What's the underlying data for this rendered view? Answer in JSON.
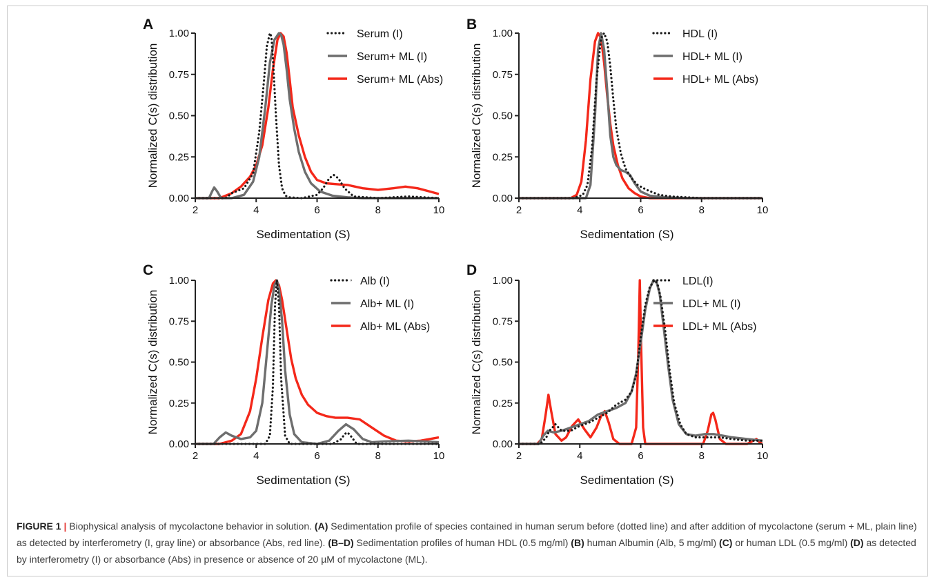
{
  "figure": {
    "caption": {
      "label": "FIGURE 1",
      "sep": "|",
      "parts": [
        {
          "t": " Biophysical analysis of mycolactone behavior in solution. ",
          "b": false
        },
        {
          "t": "(A)",
          "b": true
        },
        {
          "t": " Sedimentation profile of species contained in human serum before (dotted line) and after addition of mycolactone (serum + ML, plain line) as detected by interferometry (I, gray line) or absorbance (Abs, red line). ",
          "b": false
        },
        {
          "t": "(B–D)",
          "b": true
        },
        {
          "t": " Sedimentation profiles of human HDL (0.5 mg/ml) ",
          "b": false
        },
        {
          "t": "(B)",
          "b": true
        },
        {
          "t": " human Albumin (Alb, 5 mg/ml) ",
          "b": false
        },
        {
          "t": "(C)",
          "b": true
        },
        {
          "t": " or human LDL (0.5 mg/ml) ",
          "b": false
        },
        {
          "t": "(D)",
          "b": true
        },
        {
          "t": " as detected by interferometry (I) or absorbance (Abs) in presence or absence of 20 µM of mycolactone (ML).",
          "b": false
        }
      ]
    }
  },
  "colors": {
    "dotted": "#1a1a1a",
    "gray": "#6e6e6e",
    "red": "#f4281a",
    "axis": "#222222"
  },
  "chart_data": [
    {
      "panel": "A",
      "type": "line",
      "xlabel": "Sedimentation (S)",
      "ylabel": "Normalized C(s) distribution",
      "xlim": [
        2,
        10
      ],
      "ylim": [
        0,
        1
      ],
      "xticks": [
        2,
        4,
        6,
        8,
        10
      ],
      "yticks": [
        "0.00",
        "0.25",
        "0.50",
        "0.75",
        "1.00"
      ],
      "legend": "top-right",
      "series": [
        {
          "name": "Serum (I)",
          "style": "dotted",
          "x": [
            2.0,
            3.0,
            3.2,
            3.6,
            3.9,
            4.1,
            4.25,
            4.35,
            4.45,
            4.5,
            4.55,
            4.65,
            4.75,
            4.85,
            4.95,
            5.0,
            5.1,
            5.5,
            6.0,
            6.2,
            6.4,
            6.55,
            6.7,
            6.9,
            7.2,
            8.0,
            9.0,
            10.0
          ],
          "y": [
            0.0,
            0.0,
            0.03,
            0.06,
            0.15,
            0.4,
            0.7,
            0.92,
            1.0,
            0.98,
            0.85,
            0.5,
            0.2,
            0.06,
            0.02,
            0.01,
            0.005,
            0.0,
            0.02,
            0.06,
            0.12,
            0.14,
            0.12,
            0.06,
            0.01,
            0.0,
            0.01,
            0.0
          ]
        },
        {
          "name": "Serum+ ML (I)",
          "style": "solid",
          "x": [
            2.0,
            2.45,
            2.55,
            2.62,
            2.72,
            2.85,
            3.2,
            3.6,
            3.9,
            4.1,
            4.3,
            4.45,
            4.6,
            4.75,
            4.82,
            4.9,
            5.0,
            5.1,
            5.25,
            5.4,
            5.6,
            5.8,
            6.1,
            6.5,
            7.0,
            7.5,
            8.0,
            9.0,
            10.0
          ],
          "y": [
            0.0,
            0.0,
            0.04,
            0.065,
            0.04,
            0.0,
            0.0,
            0.02,
            0.1,
            0.25,
            0.55,
            0.82,
            0.96,
            1.0,
            0.99,
            0.93,
            0.78,
            0.6,
            0.42,
            0.28,
            0.16,
            0.09,
            0.04,
            0.015,
            0.005,
            0.0,
            0.0,
            0.0,
            0.0
          ]
        },
        {
          "name": "Serum+ ML (Abs)",
          "style": "solid",
          "x": [
            2.0,
            2.8,
            3.2,
            3.5,
            3.8,
            4.0,
            4.2,
            4.4,
            4.55,
            4.7,
            4.8,
            4.9,
            5.0,
            5.1,
            5.2,
            5.4,
            5.6,
            5.8,
            6.0,
            6.3,
            6.6,
            7.0,
            7.5,
            8.0,
            8.5,
            8.9,
            9.3,
            9.7,
            10.0
          ],
          "y": [
            0.0,
            0.0,
            0.03,
            0.07,
            0.13,
            0.2,
            0.32,
            0.55,
            0.78,
            0.96,
            1.0,
            0.98,
            0.88,
            0.72,
            0.55,
            0.38,
            0.25,
            0.16,
            0.11,
            0.09,
            0.085,
            0.08,
            0.06,
            0.05,
            0.06,
            0.07,
            0.06,
            0.04,
            0.025
          ]
        }
      ]
    },
    {
      "panel": "B",
      "type": "line",
      "xlabel": "Sedimentation (S)",
      "ylabel": "Normalized C(s) distribution",
      "xlim": [
        2,
        10
      ],
      "ylim": [
        0,
        1
      ],
      "xticks": [
        2,
        4,
        6,
        8,
        10
      ],
      "yticks": [
        "0.00",
        "0.25",
        "0.50",
        "0.75",
        "1.00"
      ],
      "legend": "top-right",
      "series": [
        {
          "name": "HDL (I)",
          "style": "dotted",
          "x": [
            2.0,
            3.8,
            4.1,
            4.25,
            4.4,
            4.55,
            4.7,
            4.8,
            4.9,
            5.0,
            5.1,
            5.2,
            5.35,
            5.5,
            5.7,
            5.9,
            6.2,
            6.6,
            7.0,
            7.5,
            8.0,
            9.0,
            10.0
          ],
          "y": [
            0.0,
            0.0,
            0.02,
            0.08,
            0.3,
            0.72,
            0.97,
            1.0,
            0.95,
            0.8,
            0.6,
            0.42,
            0.27,
            0.18,
            0.12,
            0.08,
            0.05,
            0.02,
            0.01,
            0.005,
            0.0,
            0.0,
            0.0
          ]
        },
        {
          "name": "HDL+ ML (I)",
          "style": "solid",
          "x": [
            2.0,
            4.2,
            4.35,
            4.5,
            4.6,
            4.7,
            4.8,
            4.9,
            5.0,
            5.1,
            5.2,
            5.35,
            5.5,
            5.65,
            5.8,
            6.0,
            6.3,
            6.8,
            7.5,
            8.0,
            9.0,
            10.0
          ],
          "y": [
            0.0,
            0.0,
            0.08,
            0.5,
            0.9,
            1.0,
            0.9,
            0.65,
            0.38,
            0.25,
            0.2,
            0.17,
            0.16,
            0.14,
            0.09,
            0.04,
            0.015,
            0.005,
            0.0,
            0.0,
            0.0,
            0.0
          ]
        },
        {
          "name": "HDL+ ML (Abs)",
          "style": "solid",
          "x": [
            2.0,
            3.7,
            3.9,
            4.05,
            4.2,
            4.35,
            4.5,
            4.6,
            4.7,
            4.8,
            4.9,
            5.0,
            5.1,
            5.25,
            5.4,
            5.6,
            5.8,
            6.0,
            6.3,
            7.0,
            8.0,
            10.0
          ],
          "y": [
            0.0,
            0.0,
            0.02,
            0.1,
            0.35,
            0.72,
            0.95,
            1.0,
            0.97,
            0.82,
            0.62,
            0.45,
            0.32,
            0.2,
            0.12,
            0.06,
            0.03,
            0.01,
            0.0,
            0.0,
            0.0,
            0.0
          ]
        }
      ]
    },
    {
      "panel": "C",
      "type": "line",
      "xlabel": "Sedimentation (S)",
      "ylabel": "Normalized C(s) distribution",
      "xlim": [
        2,
        10
      ],
      "ylim": [
        0,
        1
      ],
      "xticks": [
        2,
        4,
        6,
        8,
        10
      ],
      "yticks": [
        "0.00",
        "0.25",
        "0.50",
        "0.75",
        "1.00"
      ],
      "legend": "top-right",
      "series": [
        {
          "name": "Alb (I)",
          "style": "dotted",
          "x": [
            2.0,
            4.3,
            4.45,
            4.55,
            4.62,
            4.68,
            4.75,
            4.82,
            4.95,
            5.1,
            6.5,
            6.8,
            6.9,
            7.0,
            7.1,
            7.3,
            8.0,
            10.0
          ],
          "y": [
            0.0,
            0.0,
            0.05,
            0.35,
            0.85,
            1.0,
            0.85,
            0.4,
            0.05,
            0.0,
            0.0,
            0.03,
            0.06,
            0.07,
            0.05,
            0.0,
            0.0,
            0.0
          ]
        },
        {
          "name": "Alb+ ML (I)",
          "style": "solid",
          "x": [
            2.0,
            2.6,
            2.8,
            3.0,
            3.2,
            3.5,
            3.8,
            4.0,
            4.2,
            4.35,
            4.5,
            4.6,
            4.68,
            4.75,
            4.85,
            4.95,
            5.1,
            5.25,
            5.5,
            6.0,
            6.4,
            6.7,
            6.95,
            7.2,
            7.5,
            7.8,
            8.2,
            9.0,
            9.5,
            10.0
          ],
          "y": [
            0.0,
            0.0,
            0.04,
            0.07,
            0.05,
            0.03,
            0.04,
            0.08,
            0.25,
            0.55,
            0.85,
            0.97,
            1.0,
            0.95,
            0.75,
            0.45,
            0.18,
            0.06,
            0.01,
            0.0,
            0.02,
            0.08,
            0.12,
            0.09,
            0.03,
            0.01,
            0.015,
            0.02,
            0.015,
            0.01
          ]
        },
        {
          "name": "Alb+ ML (Abs)",
          "style": "solid",
          "x": [
            2.0,
            2.8,
            3.2,
            3.5,
            3.8,
            4.0,
            4.2,
            4.4,
            4.55,
            4.65,
            4.75,
            4.85,
            5.0,
            5.15,
            5.3,
            5.5,
            5.7,
            6.0,
            6.3,
            6.6,
            7.0,
            7.4,
            7.8,
            8.2,
            8.6,
            9.0,
            9.4,
            9.7,
            10.0
          ],
          "y": [
            0.0,
            0.0,
            0.02,
            0.06,
            0.2,
            0.4,
            0.65,
            0.88,
            0.98,
            1.0,
            0.97,
            0.88,
            0.7,
            0.52,
            0.4,
            0.3,
            0.24,
            0.19,
            0.17,
            0.16,
            0.16,
            0.15,
            0.1,
            0.05,
            0.02,
            0.015,
            0.02,
            0.03,
            0.04
          ]
        }
      ]
    },
    {
      "panel": "D",
      "type": "line",
      "xlabel": "Sedimentation (S)",
      "ylabel": "Normalized C(s) distribution",
      "xlim": [
        2,
        10
      ],
      "ylim": [
        0,
        1
      ],
      "xticks": [
        2,
        4,
        6,
        8,
        10
      ],
      "yticks": [
        "0.00",
        "0.25",
        "0.50",
        "0.75",
        "1.00"
      ],
      "legend": "top-right",
      "series": [
        {
          "name": "LDL(I)",
          "style": "dotted",
          "x": [
            2.0,
            2.7,
            2.9,
            3.0,
            3.2,
            3.4,
            3.7,
            4.0,
            4.3,
            4.6,
            4.9,
            5.2,
            5.5,
            5.7,
            5.85,
            6.0,
            6.15,
            6.3,
            6.45,
            6.55,
            6.65,
            6.8,
            6.95,
            7.1,
            7.3,
            7.5,
            7.8,
            8.2,
            8.6,
            9.0,
            9.5,
            10.0
          ],
          "y": [
            0.0,
            0.0,
            0.04,
            0.08,
            0.12,
            0.08,
            0.08,
            0.11,
            0.13,
            0.16,
            0.19,
            0.24,
            0.27,
            0.32,
            0.42,
            0.65,
            0.85,
            0.96,
            1.0,
            0.98,
            0.9,
            0.7,
            0.45,
            0.25,
            0.12,
            0.06,
            0.04,
            0.04,
            0.04,
            0.03,
            0.02,
            0.02
          ]
        },
        {
          "name": "LDL+ ML (I)",
          "style": "solid",
          "x": [
            2.0,
            2.65,
            2.8,
            2.95,
            3.15,
            3.4,
            3.7,
            4.0,
            4.3,
            4.6,
            4.9,
            5.2,
            5.5,
            5.7,
            5.85,
            6.0,
            6.15,
            6.3,
            6.42,
            6.52,
            6.62,
            6.75,
            6.9,
            7.05,
            7.25,
            7.5,
            7.8,
            8.1,
            8.4,
            8.7,
            9.0,
            9.5,
            10.0
          ],
          "y": [
            0.0,
            0.0,
            0.05,
            0.08,
            0.07,
            0.08,
            0.1,
            0.12,
            0.14,
            0.18,
            0.2,
            0.22,
            0.25,
            0.32,
            0.43,
            0.62,
            0.82,
            0.95,
            1.0,
            0.99,
            0.92,
            0.72,
            0.48,
            0.27,
            0.12,
            0.06,
            0.05,
            0.06,
            0.06,
            0.05,
            0.04,
            0.03,
            0.02
          ]
        },
        {
          "name": "LDL+ ML (Abs)",
          "style": "solid",
          "x": [
            2.0,
            2.6,
            2.75,
            2.88,
            2.97,
            3.06,
            3.2,
            3.4,
            3.55,
            3.75,
            3.95,
            4.15,
            4.35,
            4.55,
            4.7,
            4.82,
            4.95,
            5.1,
            5.3,
            5.7,
            5.85,
            5.92,
            5.97,
            6.02,
            6.08,
            6.15,
            6.3,
            7.5,
            8.05,
            8.2,
            8.32,
            8.38,
            8.45,
            8.6,
            8.8,
            9.5,
            9.7,
            9.8,
            9.9,
            10.0
          ],
          "y": [
            0.0,
            0.0,
            0.03,
            0.18,
            0.3,
            0.2,
            0.06,
            0.02,
            0.04,
            0.11,
            0.15,
            0.09,
            0.04,
            0.1,
            0.17,
            0.2,
            0.13,
            0.03,
            0.0,
            0.0,
            0.1,
            0.55,
            1.0,
            0.55,
            0.1,
            0.0,
            0.0,
            0.0,
            0.0,
            0.08,
            0.18,
            0.19,
            0.15,
            0.03,
            0.0,
            0.0,
            0.02,
            0.03,
            0.01,
            0.0
          ]
        }
      ]
    }
  ]
}
